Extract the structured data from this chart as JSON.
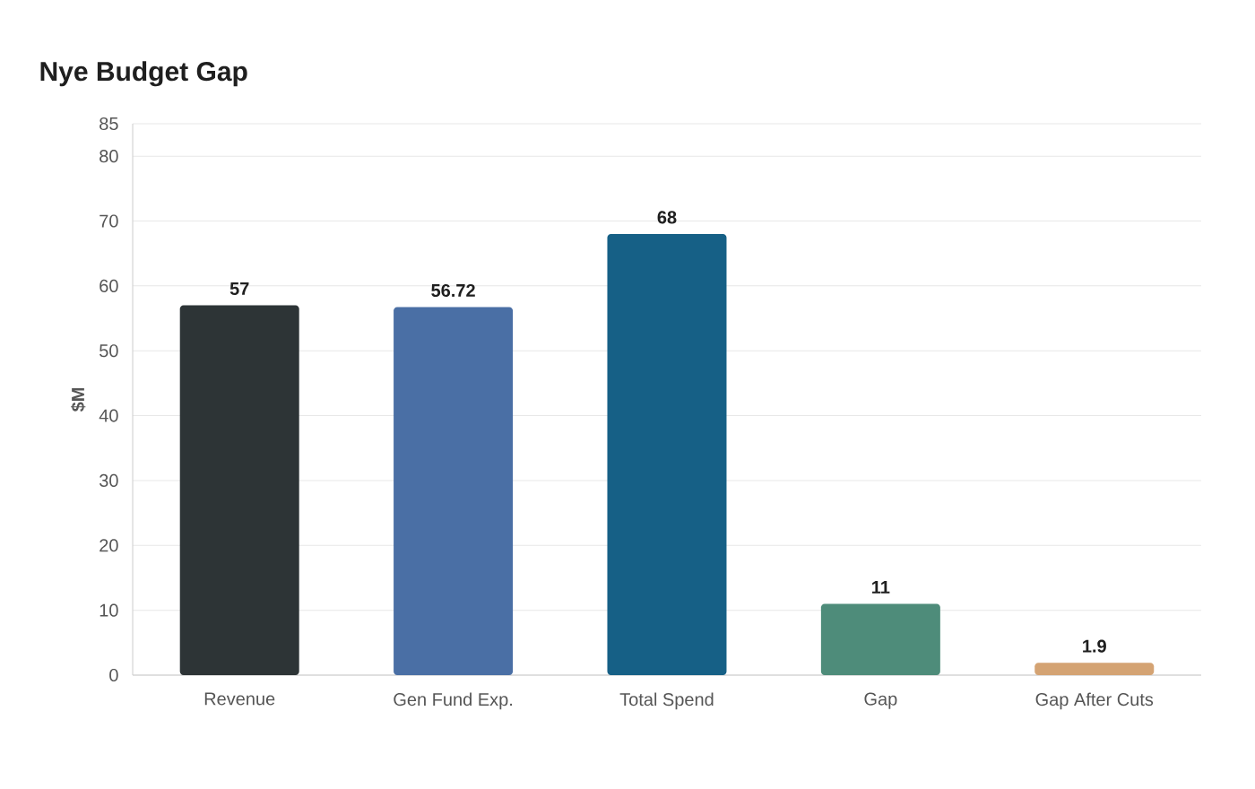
{
  "chart_data": {
    "type": "bar",
    "title": "Nye Budget Gap",
    "ylabel": "$M",
    "categories": [
      "Revenue",
      "Gen Fund Exp.",
      "Total Spend",
      "Gap",
      "Gap After Cuts"
    ],
    "values": [
      57,
      56.72,
      68,
      11,
      1.9
    ],
    "colors": [
      "#2d3436",
      "#4a6fa5",
      "#166086",
      "#4e8c7a",
      "#d4a373"
    ],
    "ylim": [
      0,
      85
    ],
    "yticks": [
      0,
      10,
      20,
      30,
      40,
      50,
      60,
      70,
      80,
      85
    ],
    "grid": "y",
    "data_labels": true
  }
}
